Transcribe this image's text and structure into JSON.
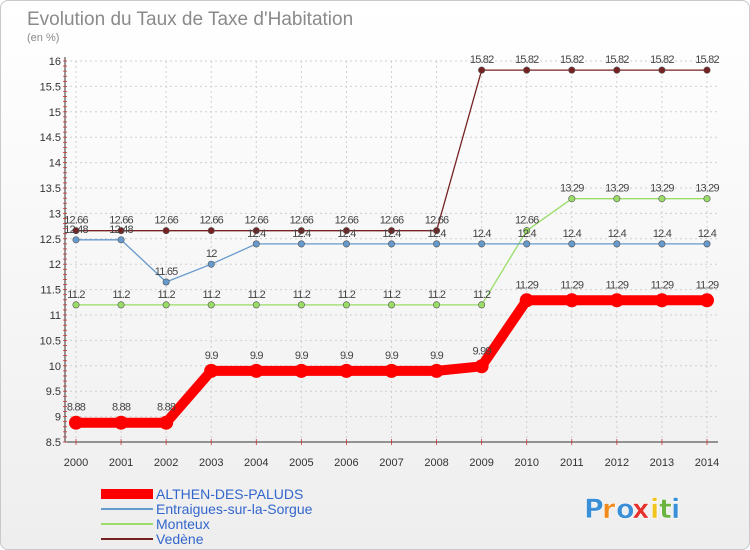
{
  "chart_data": {
    "type": "line",
    "title": "Evolution du Taux de Taxe d'Habitation",
    "ylabel": "(en %)",
    "ylim": [
      8.5,
      16
    ],
    "yticks": [
      8.5,
      9,
      9.5,
      10,
      10.5,
      11,
      11.5,
      12,
      12.5,
      13,
      13.5,
      14,
      14.5,
      15,
      15.5,
      16
    ],
    "categories": [
      "2000",
      "2001",
      "2002",
      "2003",
      "2004",
      "2005",
      "2006",
      "2007",
      "2008",
      "2009",
      "2010",
      "2011",
      "2012",
      "2013",
      "2014"
    ],
    "series": [
      {
        "name": "ALTHEN-DES-PALUDS",
        "color": "#ff0000",
        "values": [
          8.88,
          8.88,
          8.88,
          9.9,
          9.9,
          9.9,
          9.9,
          9.9,
          9.9,
          9.99,
          11.29,
          11.29,
          11.29,
          11.29,
          11.29
        ]
      },
      {
        "name": "Entraigues-sur-la-Sorgue",
        "color": "#6699cc",
        "values": [
          12.48,
          12.48,
          11.65,
          12,
          12.4,
          12.4,
          12.4,
          12.4,
          12.4,
          12.4,
          12.4,
          12.4,
          12.4,
          12.4,
          12.4
        ]
      },
      {
        "name": "Monteux",
        "color": "#99dd66",
        "values": [
          11.2,
          11.2,
          11.2,
          11.2,
          11.2,
          11.2,
          11.2,
          11.2,
          11.2,
          11.2,
          12.66,
          13.29,
          13.29,
          13.29,
          13.29
        ]
      },
      {
        "name": "Vedène",
        "color": "#772222",
        "values": [
          12.66,
          12.66,
          12.66,
          12.66,
          12.66,
          12.66,
          12.66,
          12.66,
          12.66,
          15.82,
          15.82,
          15.82,
          15.82,
          15.82,
          15.82
        ]
      }
    ],
    "data_labels": [
      [
        "8.88",
        "8.88",
        "8.88",
        "9.9",
        "9.9",
        "9.9",
        "9.9",
        "9.9",
        "9.9",
        "9.99",
        "11.29",
        "11.29",
        "11.29",
        "11.29",
        "11.29"
      ],
      [
        "12.48",
        "12.48",
        "11.65",
        "12",
        "12.4",
        "12.4",
        "12.4",
        "12.4",
        "12.4",
        "12.4",
        "12.4",
        "12.4",
        "12.4",
        "12.4",
        "12.4"
      ],
      [
        "11.2",
        "11.2",
        "11.2",
        "11.2",
        "11.2",
        "11.2",
        "11.2",
        "11.2",
        "11.2",
        "11.2",
        "12.66",
        "13.29",
        "13.29",
        "13.29",
        "13.29"
      ],
      [
        "12.66",
        "12.66",
        "12.66",
        "12.66",
        "12.66",
        "12.66",
        "12.66",
        "12.66",
        "12.66",
        "15.82",
        "15.82",
        "15.82",
        "15.82",
        "15.82",
        "15.82"
      ]
    ],
    "legend": [
      "ALTHEN-DES-PALUDS",
      "Entraigues-sur-la-Sorgue",
      "Monteux",
      "Vedène"
    ],
    "legend_position": "bottom-left"
  },
  "logo": {
    "text": "Proxiti",
    "colors": [
      "#3b8fd6",
      "#f08a1c",
      "#3b8fd6",
      "#e5312b",
      "#f0c41c",
      "#6cb33f",
      "#3b8fd6"
    ]
  }
}
